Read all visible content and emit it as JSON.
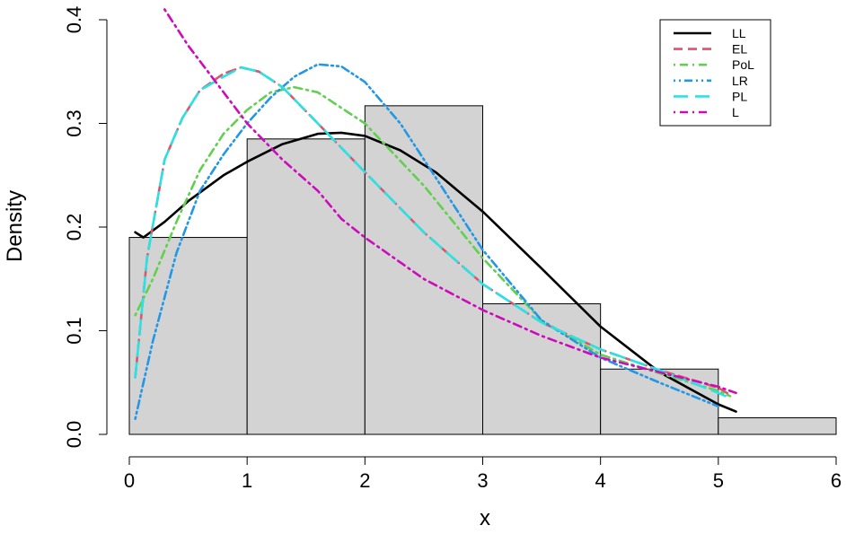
{
  "chart_data": {
    "type": "histogram",
    "xlabel": "x",
    "ylabel": "Density",
    "xlim": [
      0,
      6
    ],
    "ylim": [
      0,
      0.4
    ],
    "x_ticks": [
      "0",
      "1",
      "2",
      "3",
      "4",
      "5",
      "6"
    ],
    "y_ticks": [
      "0.0",
      "0.1",
      "0.2",
      "0.3",
      "0.4"
    ],
    "grid": false,
    "legend_position": "top-right",
    "histogram": {
      "bins": [
        [
          0,
          1
        ],
        [
          1,
          2
        ],
        [
          2,
          3
        ],
        [
          3,
          4
        ],
        [
          4,
          5
        ],
        [
          5,
          6
        ]
      ],
      "densities": [
        0.19,
        0.285,
        0.317,
        0.126,
        0.063,
        0.016
      ],
      "fill": "#d3d3d3"
    },
    "series": [
      {
        "name": "LL",
        "color": "#000000",
        "dash": "solid",
        "x": [
          0.05,
          0.12,
          0.3,
          0.5,
          0.8,
          1.0,
          1.3,
          1.6,
          1.8,
          2.0,
          2.3,
          2.6,
          3.0,
          3.5,
          4.0,
          4.5,
          5.0,
          5.15
        ],
        "y": [
          0.195,
          0.19,
          0.205,
          0.225,
          0.25,
          0.263,
          0.28,
          0.29,
          0.291,
          0.288,
          0.274,
          0.253,
          0.215,
          0.16,
          0.104,
          0.06,
          0.029,
          0.022
        ]
      },
      {
        "name": "EL",
        "color": "#df536b",
        "dash": "dashed",
        "x": [
          0.05,
          0.15,
          0.3,
          0.45,
          0.6,
          0.8,
          0.95,
          1.1,
          1.3,
          1.6,
          2.0,
          2.5,
          3.0,
          3.5,
          4.0,
          4.5,
          5.0,
          5.1
        ],
        "y": [
          0.055,
          0.17,
          0.265,
          0.305,
          0.332,
          0.348,
          0.354,
          0.35,
          0.335,
          0.3,
          0.253,
          0.195,
          0.145,
          0.108,
          0.082,
          0.062,
          0.045,
          0.038
        ]
      },
      {
        "name": "PoL",
        "color": "#61d04f",
        "dash": "dot-dash",
        "x": [
          0.05,
          0.2,
          0.4,
          0.6,
          0.8,
          1.0,
          1.2,
          1.4,
          1.6,
          2.0,
          2.5,
          3.0,
          3.5,
          4.0,
          4.5,
          5.0,
          5.1
        ],
        "y": [
          0.115,
          0.15,
          0.205,
          0.255,
          0.29,
          0.313,
          0.33,
          0.335,
          0.33,
          0.3,
          0.24,
          0.17,
          0.11,
          0.077,
          0.059,
          0.042,
          0.037
        ]
      },
      {
        "name": "LR",
        "color": "#2297e6",
        "dash": "dot-dot-dash",
        "x": [
          0.05,
          0.2,
          0.4,
          0.6,
          0.8,
          1.0,
          1.2,
          1.4,
          1.6,
          1.8,
          2.0,
          2.3,
          2.6,
          3.0,
          3.5,
          4.0,
          4.5,
          5.0
        ],
        "y": [
          0.015,
          0.09,
          0.175,
          0.235,
          0.27,
          0.3,
          0.325,
          0.345,
          0.357,
          0.355,
          0.34,
          0.3,
          0.248,
          0.178,
          0.11,
          0.074,
          0.05,
          0.027
        ]
      },
      {
        "name": "PL",
        "color": "#28e2e5",
        "dash": "long-dash",
        "x": [
          0.05,
          0.15,
          0.3,
          0.45,
          0.6,
          0.8,
          0.95,
          1.1,
          1.3,
          1.6,
          2.0,
          2.5,
          3.0,
          3.5,
          4.0,
          4.5,
          5.0,
          5.1
        ],
        "y": [
          0.055,
          0.17,
          0.265,
          0.305,
          0.332,
          0.345,
          0.354,
          0.35,
          0.335,
          0.3,
          0.253,
          0.195,
          0.145,
          0.108,
          0.082,
          0.062,
          0.04,
          0.035
        ]
      },
      {
        "name": "L",
        "color": "#cd0bbc",
        "dash": "dot-dash",
        "x": [
          0.3,
          0.5,
          0.7,
          1.0,
          1.3,
          1.6,
          1.8,
          2.0,
          2.5,
          3.0,
          3.5,
          4.0,
          4.5,
          5.0,
          5.15
        ],
        "y": [
          0.41,
          0.375,
          0.345,
          0.3,
          0.265,
          0.235,
          0.208,
          0.19,
          0.15,
          0.12,
          0.095,
          0.074,
          0.06,
          0.046,
          0.04
        ]
      }
    ]
  }
}
